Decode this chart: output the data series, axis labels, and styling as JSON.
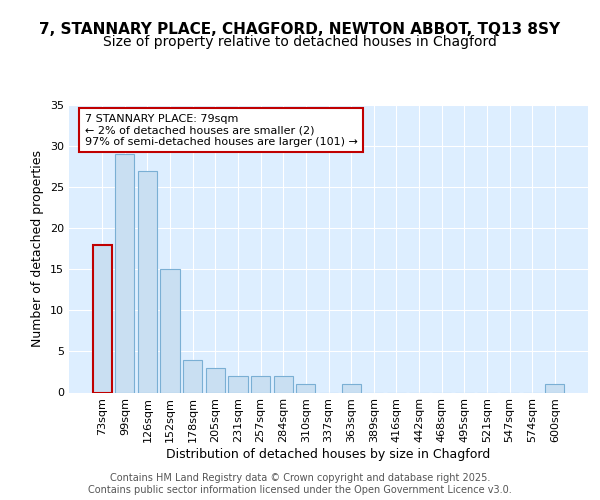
{
  "title": "7, STANNARY PLACE, CHAGFORD, NEWTON ABBOT, TQ13 8SY",
  "subtitle": "Size of property relative to detached houses in Chagford",
  "xlabel": "Distribution of detached houses by size in Chagford",
  "ylabel": "Number of detached properties",
  "categories": [
    "73sqm",
    "99sqm",
    "126sqm",
    "152sqm",
    "178sqm",
    "205sqm",
    "231sqm",
    "257sqm",
    "284sqm",
    "310sqm",
    "337sqm",
    "363sqm",
    "389sqm",
    "416sqm",
    "442sqm",
    "468sqm",
    "495sqm",
    "521sqm",
    "547sqm",
    "574sqm",
    "600sqm"
  ],
  "values": [
    18,
    29,
    27,
    15,
    4,
    3,
    2,
    2,
    2,
    1,
    0,
    1,
    0,
    0,
    0,
    0,
    0,
    0,
    0,
    0,
    1
  ],
  "bar_color": "#c9dff2",
  "bar_edge_color": "#7aafd4",
  "highlight_bar_index": 0,
  "highlight_bar_edge_color": "#c00000",
  "annotation_box_text": "7 STANNARY PLACE: 79sqm\n← 2% of detached houses are smaller (2)\n97% of semi-detached houses are larger (101) →",
  "annotation_box_edge_color": "#c00000",
  "ylim": [
    0,
    35
  ],
  "yticks": [
    0,
    5,
    10,
    15,
    20,
    25,
    30,
    35
  ],
  "figure_bg_color": "#ffffff",
  "plot_bg_color": "#ddeeff",
  "grid_color": "#ffffff",
  "footer_text": "Contains HM Land Registry data © Crown copyright and database right 2025.\nContains public sector information licensed under the Open Government Licence v3.0.",
  "title_fontsize": 11,
  "subtitle_fontsize": 10,
  "axis_label_fontsize": 9,
  "tick_fontsize": 8,
  "annotation_fontsize": 8,
  "footer_fontsize": 7
}
